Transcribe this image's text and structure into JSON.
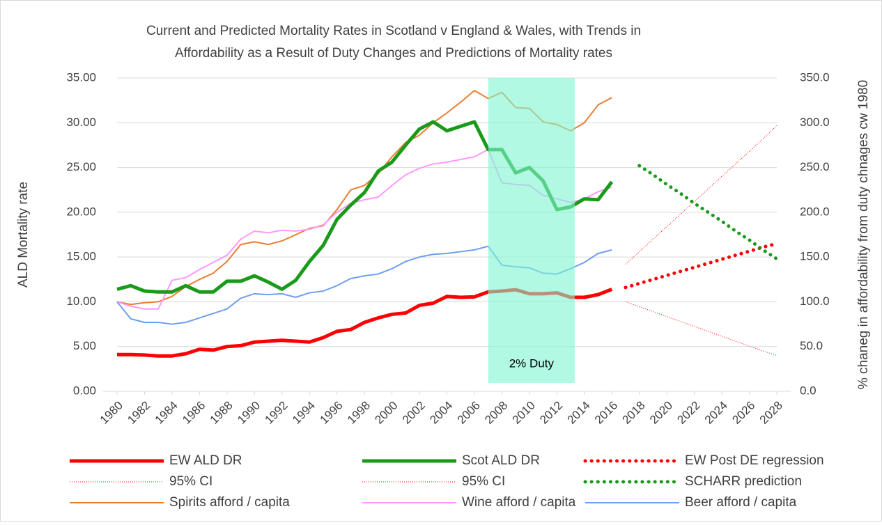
{
  "chart_data": {
    "type": "line",
    "title": "Current and Predicted Mortality Rates in Scotland v England & Wales, with Trends in",
    "subtitle": "Affordability as a Result of Duty Changes and Predictions of Mortality rates",
    "y_label": "ALD Mortality rate",
    "y2_label": "% chaneg in affordability from duty chnages cw 1980",
    "x": [
      1980,
      1981,
      1982,
      1983,
      1984,
      1985,
      1986,
      1987,
      1988,
      1989,
      1990,
      1991,
      1992,
      1993,
      1994,
      1995,
      1996,
      1997,
      1998,
      1999,
      2000,
      2001,
      2002,
      2003,
      2004,
      2005,
      2006,
      2007,
      2008,
      2009,
      2010,
      2011,
      2012,
      2013,
      2014,
      2015,
      2016,
      2017,
      2018,
      2019,
      2020,
      2021,
      2022,
      2023,
      2024,
      2025,
      2026,
      2027,
      2028
    ],
    "xlim": [
      1980,
      2028
    ],
    "xticks": [
      1980,
      1982,
      1984,
      1986,
      1988,
      1990,
      1992,
      1994,
      1996,
      1998,
      2000,
      2002,
      2004,
      2006,
      2008,
      2010,
      2012,
      2014,
      2016,
      2018,
      2020,
      2022,
      2024,
      2026,
      2028
    ],
    "ylim": [
      0,
      35
    ],
    "yticks": [
      {
        "value": 0,
        "label": "0.00"
      },
      {
        "value": 5,
        "label": "5.00"
      },
      {
        "value": 10,
        "label": "10.00"
      },
      {
        "value": 15,
        "label": "15.00"
      },
      {
        "value": 20,
        "label": "20.00"
      },
      {
        "value": 25,
        "label": "25.00"
      },
      {
        "value": 30,
        "label": "30.00"
      },
      {
        "value": 35,
        "label": "35.00"
      }
    ],
    "y2lim": [
      0,
      350
    ],
    "y2ticks": [
      {
        "value": 0,
        "label": "0.0"
      },
      {
        "value": 50,
        "label": "50.0"
      },
      {
        "value": 100,
        "label": "100.0"
      },
      {
        "value": 150,
        "label": "150.0"
      },
      {
        "value": 200,
        "label": "200.0"
      },
      {
        "value": 250,
        "label": "250.0"
      },
      {
        "value": 300,
        "label": "300.0"
      },
      {
        "value": 350,
        "label": "350.0"
      }
    ],
    "grid": true,
    "band": {
      "x": [
        2007,
        2013.3
      ],
      "label": "2% Duty",
      "color": "#7ff5d0"
    },
    "series": [
      {
        "name": "EW ALD DR",
        "color": "#ff0000",
        "width": 5,
        "style": "solid",
        "values": [
          4.1,
          4.1,
          4.05,
          3.95,
          3.95,
          4.2,
          4.7,
          4.6,
          5.0,
          5.1,
          5.5,
          5.6,
          5.7,
          5.6,
          5.5,
          6.0,
          6.7,
          6.9,
          7.7,
          8.2,
          8.6,
          8.75,
          9.6,
          9.85,
          10.6,
          10.5,
          10.55,
          11.1,
          11.2,
          11.35,
          10.9,
          10.9,
          11.0,
          10.5,
          10.5,
          10.8,
          11.4,
          null,
          null,
          null,
          null,
          null,
          null,
          null,
          null,
          null,
          null,
          null,
          null
        ]
      },
      {
        "name": "Scot ALD DR",
        "color": "#1a9a1a",
        "width": 5,
        "style": "solid",
        "values": [
          11.4,
          11.8,
          11.2,
          11.1,
          11.1,
          11.8,
          11.1,
          11.1,
          12.3,
          12.3,
          12.9,
          12.2,
          11.4,
          12.4,
          14.5,
          16.3,
          19.2,
          20.8,
          22.2,
          24.6,
          25.6,
          27.5,
          29.3,
          30.1,
          29.1,
          29.6,
          30.1,
          27.0,
          27.0,
          24.4,
          25.0,
          23.5,
          20.3,
          20.6,
          21.5,
          21.4,
          23.4,
          null,
          null,
          null,
          null,
          null,
          null,
          null,
          null,
          null,
          null,
          null,
          null
        ]
      },
      {
        "name": "EW Post DE regression",
        "color": "#ff0000",
        "width": 5,
        "style": "dotted",
        "values": [
          null,
          null,
          null,
          null,
          null,
          null,
          null,
          null,
          null,
          null,
          null,
          null,
          null,
          null,
          null,
          null,
          null,
          null,
          null,
          null,
          null,
          null,
          null,
          null,
          null,
          null,
          null,
          null,
          null,
          null,
          null,
          null,
          null,
          null,
          null,
          null,
          null,
          11.6,
          12.05,
          12.5,
          12.95,
          13.4,
          13.85,
          14.3,
          14.75,
          15.2,
          15.65,
          16.1,
          16.5
        ]
      },
      {
        "name": "95% CI",
        "color": "#ff0000",
        "width": 1,
        "style": "dotted",
        "values": [
          null,
          null,
          null,
          null,
          null,
          null,
          null,
          null,
          null,
          null,
          null,
          null,
          null,
          null,
          null,
          null,
          null,
          null,
          null,
          null,
          null,
          null,
          null,
          null,
          null,
          null,
          null,
          null,
          null,
          null,
          null,
          null,
          null,
          null,
          null,
          null,
          null,
          14.2,
          15.6,
          17.0,
          18.4,
          19.8,
          21.2,
          22.6,
          24.0,
          25.4,
          26.8,
          28.2,
          29.7
        ]
      },
      {
        "name": "95% CI",
        "color": "#ff0000",
        "width": 1,
        "style": "dotted",
        "values": [
          null,
          null,
          null,
          null,
          null,
          null,
          null,
          null,
          null,
          null,
          null,
          null,
          null,
          null,
          null,
          null,
          null,
          null,
          null,
          null,
          null,
          null,
          null,
          null,
          null,
          null,
          null,
          null,
          null,
          null,
          null,
          null,
          null,
          null,
          null,
          null,
          null,
          10.0,
          9.45,
          8.9,
          8.35,
          7.8,
          7.25,
          6.7,
          6.15,
          5.6,
          5.05,
          4.5,
          4.0
        ]
      },
      {
        "name": "SCHARR prediction",
        "color": "#1a9a1a",
        "width": 5,
        "style": "dotted",
        "values": [
          null,
          null,
          null,
          null,
          null,
          null,
          null,
          null,
          null,
          null,
          null,
          null,
          null,
          null,
          null,
          null,
          null,
          null,
          null,
          null,
          null,
          null,
          null,
          null,
          null,
          null,
          null,
          null,
          null,
          null,
          null,
          null,
          null,
          null,
          null,
          null,
          null,
          null,
          25.2,
          24.2,
          23.1,
          22.1,
          21.0,
          20.0,
          19.0,
          17.9,
          16.9,
          15.8,
          14.8
        ]
      },
      {
        "name": "Spirits afford / capita",
        "color": "#ed7d31",
        "width": 2,
        "style": "solid",
        "axis": "y2",
        "values": [
          100,
          97,
          99,
          100,
          106,
          117,
          125,
          132,
          145,
          164,
          167,
          164,
          168,
          175,
          182,
          185,
          203,
          225,
          230,
          243,
          262,
          278,
          286,
          300,
          311,
          323,
          336,
          327,
          334,
          317,
          316,
          301,
          298,
          291,
          300,
          320,
          328,
          null,
          null,
          null,
          null,
          null,
          null,
          null,
          null,
          null,
          null,
          null,
          null
        ]
      },
      {
        "name": "Wine afford / capita",
        "color": "#ff99ff",
        "width": 2,
        "style": "solid",
        "axis": "y2",
        "values": [
          100,
          95,
          92,
          92,
          124,
          127,
          136,
          144,
          152,
          170,
          179,
          177,
          180,
          179,
          181,
          186,
          200,
          210,
          214,
          217,
          230,
          242,
          249,
          254,
          256,
          259,
          262,
          270,
          233,
          231,
          230,
          219,
          215,
          211,
          215,
          223,
          228,
          null,
          null,
          null,
          null,
          null,
          null,
          null,
          null,
          null,
          null,
          null,
          null
        ]
      },
      {
        "name": "Beer afford / capita",
        "color": "#6f9ef0",
        "width": 2,
        "style": "solid",
        "axis": "y2",
        "values": [
          100,
          81,
          77,
          77,
          75,
          77,
          82,
          87,
          92,
          104,
          109,
          108,
          109,
          105,
          110,
          112,
          118,
          126,
          129,
          131,
          137,
          145,
          150,
          153,
          154,
          156,
          158,
          162,
          141,
          139,
          138,
          132,
          131,
          137,
          144,
          154,
          158,
          null,
          null,
          null,
          null,
          null,
          null,
          null,
          null,
          null,
          null,
          null,
          null
        ]
      }
    ]
  }
}
